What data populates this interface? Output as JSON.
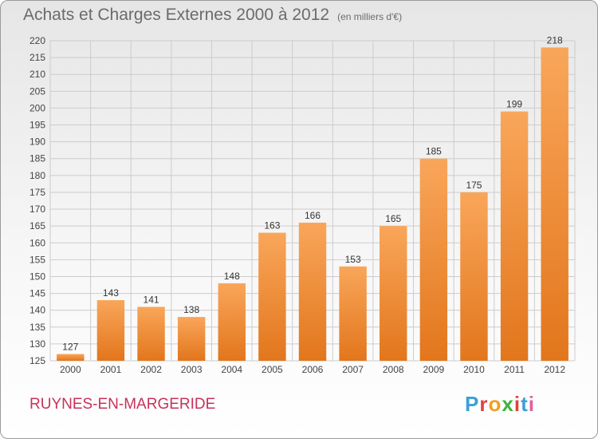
{
  "title": "Achats et Charges Externes 2000 à 2012",
  "unit_label": "(en milliers d'€)",
  "commune": "RUYNES-EN-MARGERIDE",
  "logo": {
    "text": "Proxiti",
    "colors": [
      "#3aa0d8",
      "#e04040",
      "#f0a020",
      "#40b040",
      "#e04040",
      "#3aa0d8",
      "#e060a0"
    ]
  },
  "colors": {
    "bar_light": "#f9a65a",
    "bar_dark": "#e2761c",
    "grid": "#cccccc",
    "axis_text": "#444444",
    "value_text": "#333333"
  },
  "chart_data": {
    "type": "bar",
    "categories": [
      "2000",
      "2001",
      "2002",
      "2003",
      "2004",
      "2005",
      "2006",
      "2007",
      "2008",
      "2009",
      "2010",
      "2011",
      "2012"
    ],
    "values": [
      127,
      143,
      141,
      138,
      148,
      163,
      166,
      153,
      165,
      185,
      175,
      199,
      218
    ],
    "ylim": [
      125,
      220
    ],
    "yticks": [
      125,
      130,
      135,
      140,
      145,
      150,
      155,
      160,
      165,
      170,
      175,
      180,
      185,
      190,
      195,
      200,
      205,
      210,
      215,
      220
    ],
    "grid": true,
    "data_labels": true
  }
}
